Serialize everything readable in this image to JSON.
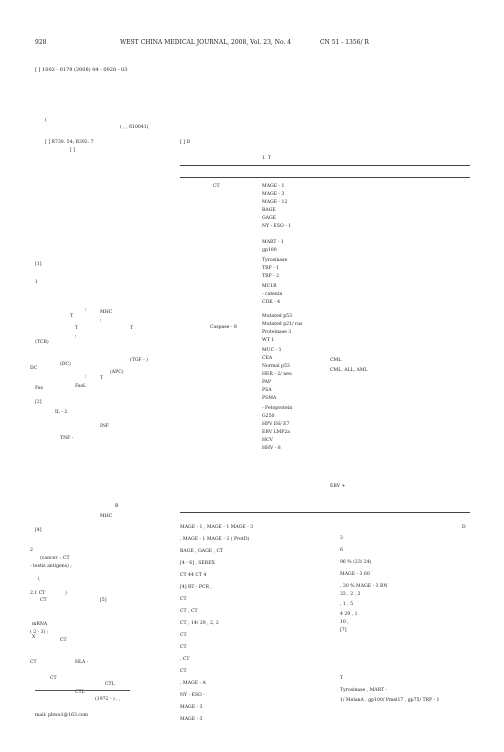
{
  "header": {
    "page_number": "928",
    "journal": "WEST CHINA MEDICAL JOURNAL, 2008, Vol. 23, No. 4",
    "cn": "CN 51 - 1356/ R"
  },
  "article_meta": {
    "article_number": "[          ] 1002 - 0179 (2008) 04 - 0928 - 03",
    "affiliation_code": "(                                          ,                    ,          610041)",
    "clc": "[          ] R730. 54;  R392. 7",
    "doc_code": "[          ] D"
  },
  "table": {
    "caption": "1.   T",
    "left_labels": [
      "CT",
      "Caspase - 8"
    ],
    "mid_entries": [
      "MAGE - 1",
      "MAGE - 3",
      "MAGE - 12",
      "BAGE",
      "GAGE",
      "NY - ESO - 1",
      "MART - 1",
      "gp100",
      "Tyrosinase",
      "TRP - 1",
      "TRP - 2",
      "MC1R",
      "- catenin",
      "CDK - 4",
      "Mutated p53",
      "Mutated p21/ ras",
      "Proteinase 3",
      "WT 1",
      "MUC - 1",
      "CEA",
      "Normal p53",
      "HER - 2/ neu",
      "PAP",
      "PSA",
      "PSMA",
      "- Fetoprotein",
      "G250",
      "HPV E6/ E7",
      "EBV LMP2a",
      "HCV",
      "HHV - 8"
    ],
    "right_entries": [
      "CML",
      "CML, ALL, AML",
      "EBV +"
    ]
  },
  "left_column": {
    "bits": [
      "(",
      "[          ]",
      "[1]",
      "1",
      ";",
      "MHC",
      "T",
      ";",
      "T",
      "T",
      ";",
      "(TCR)",
      "(TGF - )",
      "(DC)",
      "DC",
      "(APC)",
      ";",
      "FasL",
      "Fas",
      "T",
      "[2]",
      "IL - 2",
      "INF",
      "TNF -",
      "B",
      "MHC",
      "[4]",
      "2",
      ": CT",
      "(cancer",
      "- testis antigens) ;",
      "(",
      ")",
      "2.1  CT",
      "CT",
      "[5]",
      "mRNA",
      "(  2 - 3) ;",
      "X",
      "CT",
      "CT",
      "HLA -",
      "CT",
      "CTL",
      "CTL"
    ],
    "footnote": "(1972 - ) ,            ,",
    "email": "mail: pbwa1@163.com"
  },
  "bottom_body": {
    "lines": [
      "MAGE - 1 ,          MAGE - 1                    MAGE - 3",
      ",       MAGE - 1    MAGE - 3              ( ProtD)",
      "BAGE , GAGE ,           CT",
      "[4 - 6]                  , SEREX",
      "CT                44    CT                   4",
      "[4]          RT - PCR ,",
      "CT",
      "CT         ,          CT",
      "CT                 ,  14/ 29  ,  2, 2",
      "CT",
      "CT",
      ", CT",
      "CT",
      ",          MAGE - A",
      "NY - ESO -",
      "MAGE - 3",
      "MAGE - 3"
    ],
    "right_lines": [
      "D",
      "3",
      "6",
      "96 %  (23/ 24)",
      "MAGE - 3   60",
      ", 30 %           MAGE - 3     BN",
      "33        ,   2          , 2",
      ",   1          ,   5",
      "4    29       ,   1",
      "10      ,",
      "[7]",
      "T",
      "Tyrosinase ,        MART -",
      "1/ MelanA , gp100/ Pmel17 ,  gp75/ TRP - 1"
    ]
  }
}
